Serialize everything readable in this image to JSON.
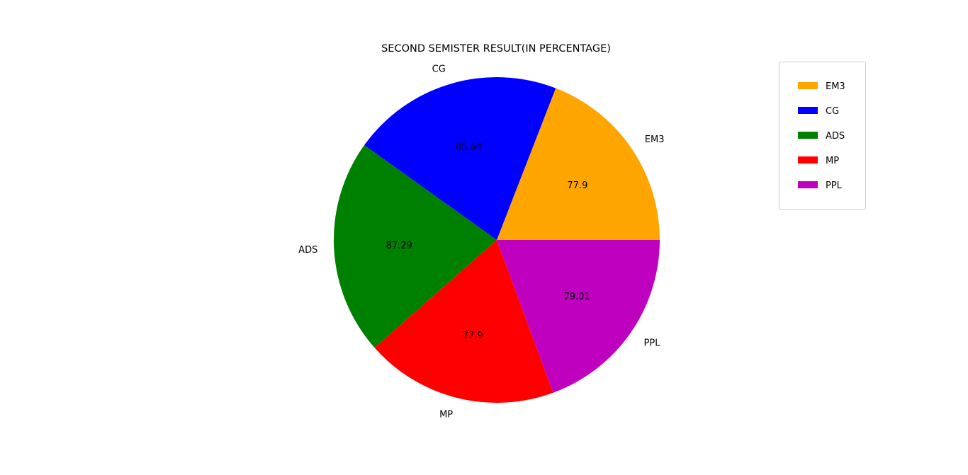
{
  "chart_data": {
    "type": "pie",
    "title": "SECOND SEMISTER RESULT(IN PERCENTAGE)",
    "categories": [
      "EM3",
      "CG",
      "ADS",
      "MP",
      "PPL"
    ],
    "values": [
      77.9,
      85.64,
      87.29,
      77.9,
      79.01
    ],
    "value_labels": [
      "77.9",
      "85.64",
      "87.29",
      "77.9",
      "79.01"
    ],
    "colors": [
      "#ffa500",
      "#0000ff",
      "#008000",
      "#ff0000",
      "#bf00bf"
    ],
    "start_angle_deg": 0,
    "direction": "counterclockwise",
    "legend": {
      "position": "top-right",
      "entries": [
        "EM3",
        "CG",
        "ADS",
        "MP",
        "PPL"
      ]
    }
  }
}
